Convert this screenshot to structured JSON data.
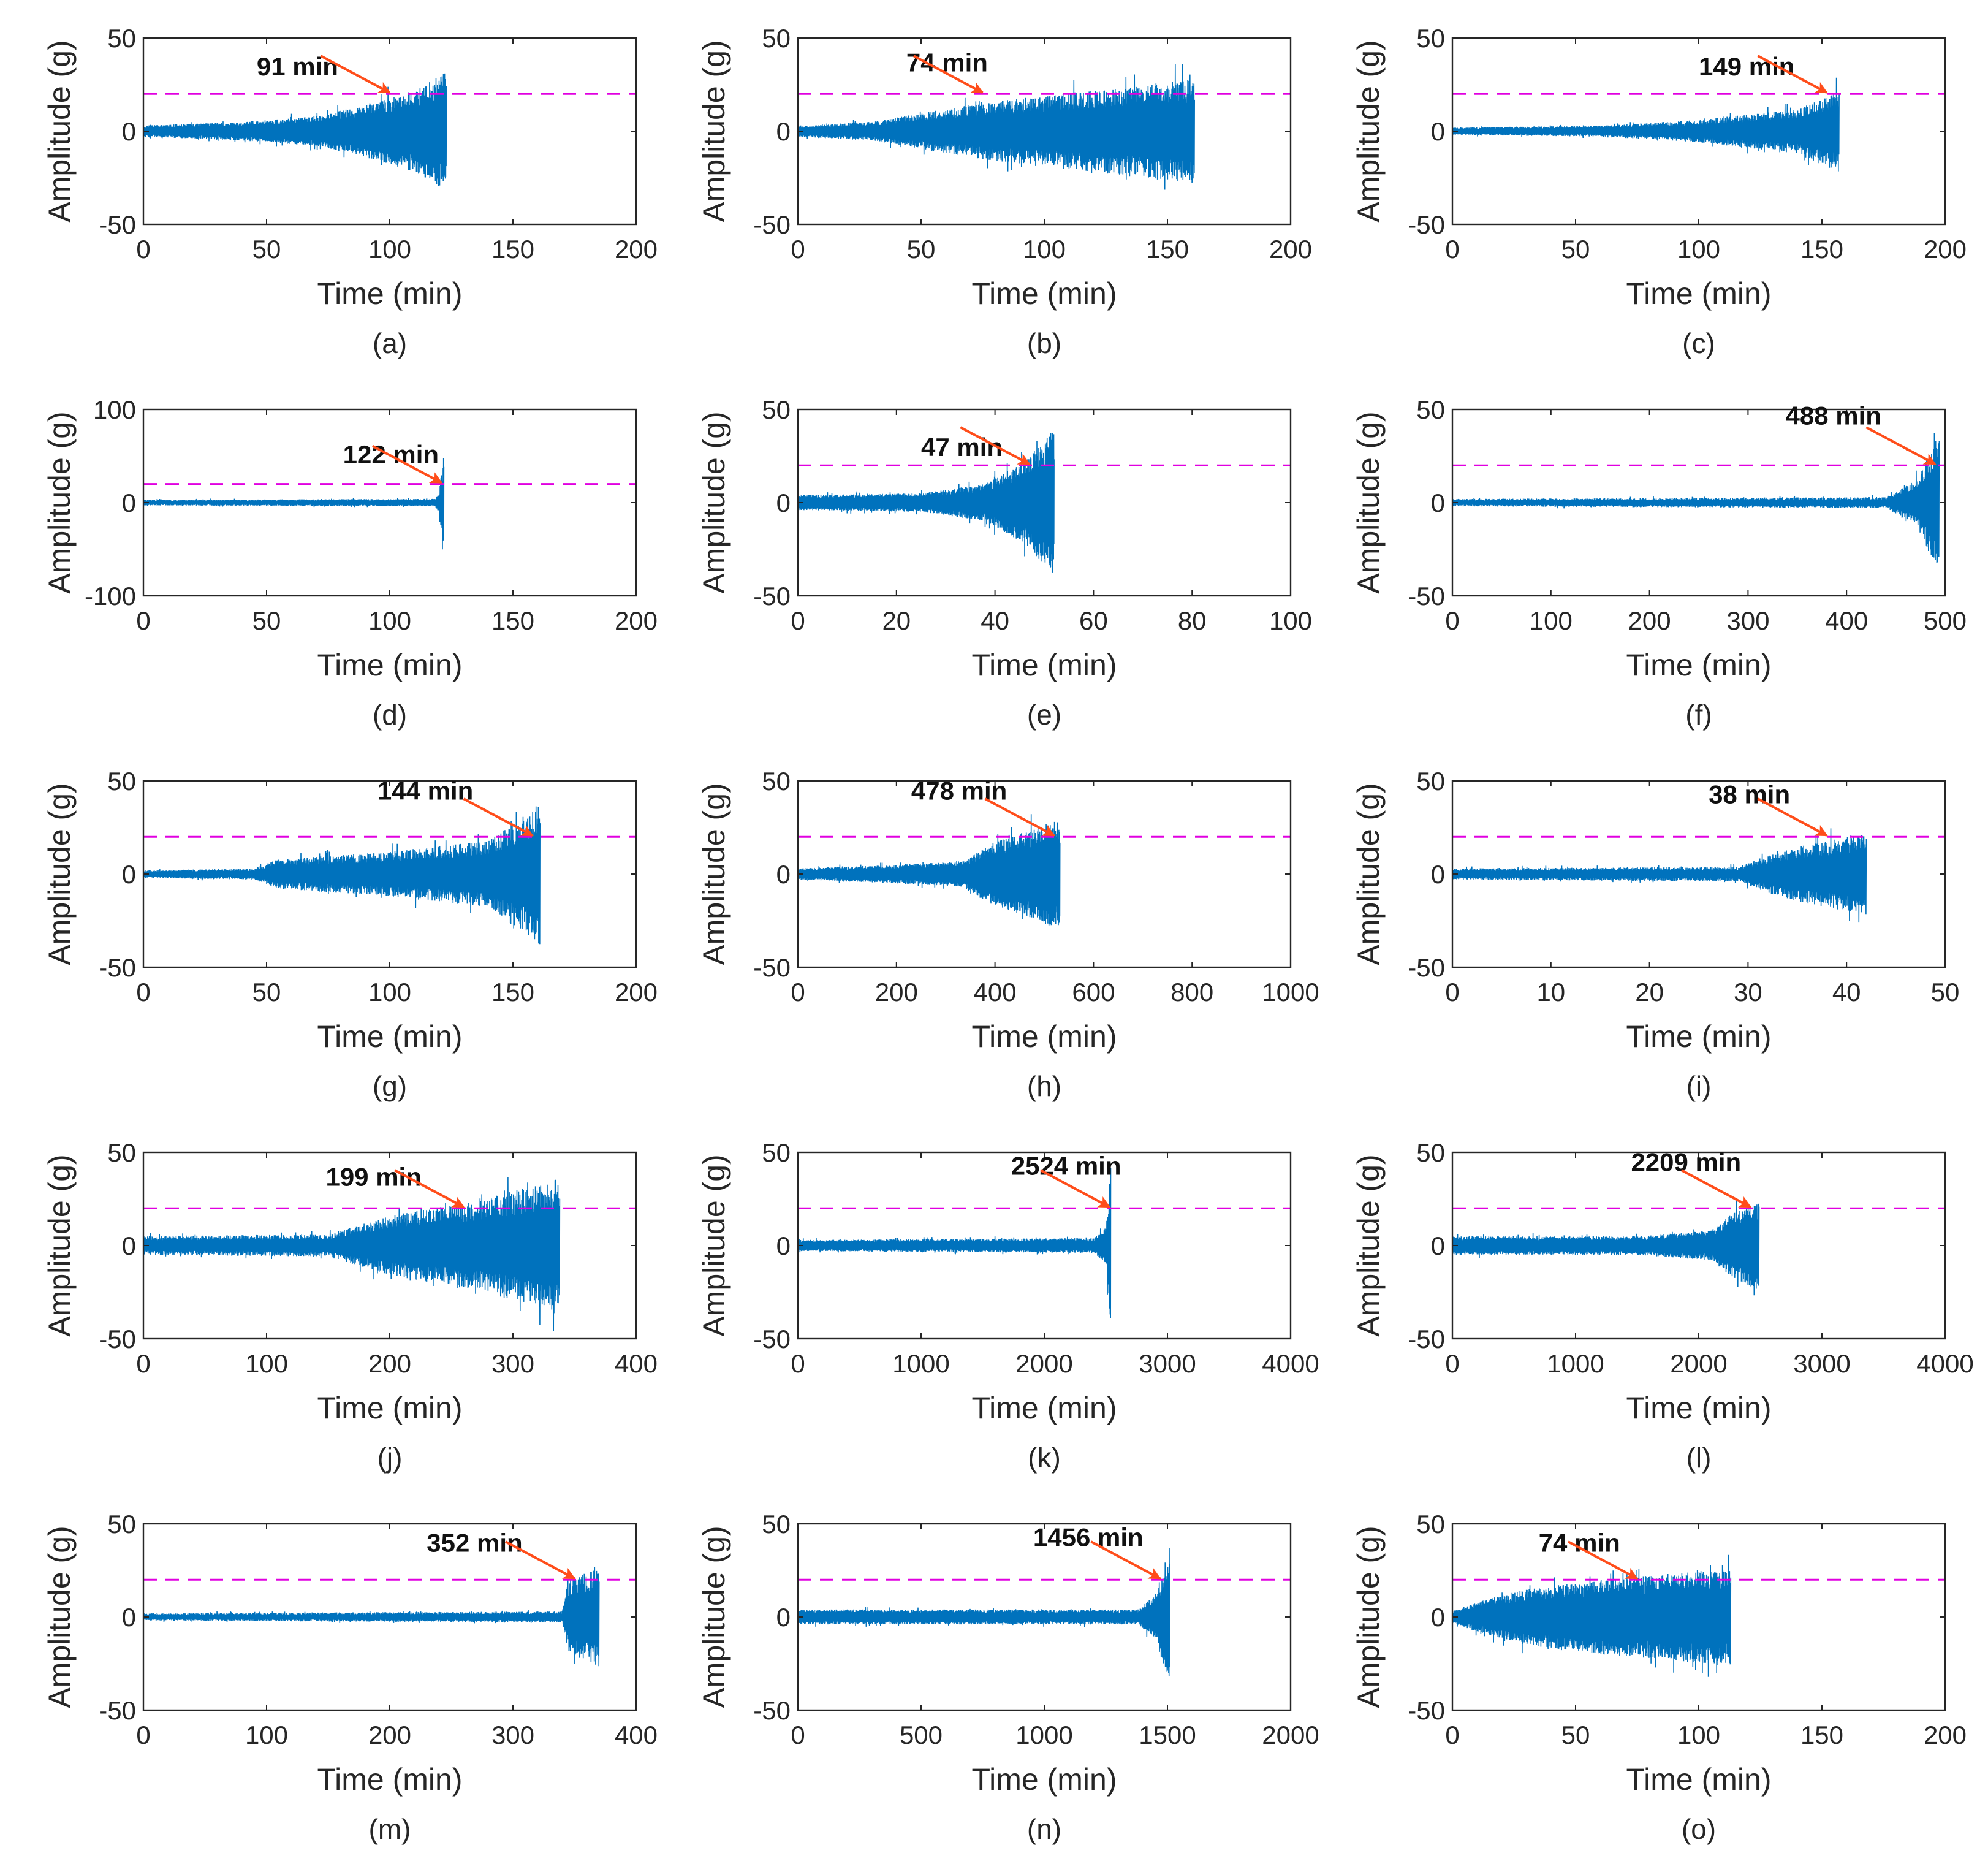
{
  "figure": {
    "threshold_label_note": "dashed line",
    "colors": {
      "signal": "#0072BD",
      "threshold": "#E000E0",
      "arrow": "#FF4D1A",
      "axis": "#262626"
    }
  },
  "chart_data": [
    {
      "type": "line",
      "panel": "(a)",
      "xlim": [
        0,
        200
      ],
      "xticks": [
        0,
        50,
        100,
        150,
        200
      ],
      "ylim": [
        -50,
        50
      ],
      "yticks": [
        -50,
        0,
        50
      ],
      "xlabel": "Time (min)",
      "ylabel": "Amplitude (g)",
      "threshold": 20,
      "end": 123,
      "amp_profile": [
        [
          0,
          3
        ],
        [
          40,
          5
        ],
        [
          70,
          8
        ],
        [
          90,
          14
        ],
        [
          110,
          22
        ],
        [
          123,
          32
        ]
      ],
      "annotation": {
        "label": "91 min",
        "time": 100,
        "text_at": [
          46,
          30
        ]
      }
    },
    {
      "type": "line",
      "panel": "(b)",
      "xlim": [
        0,
        200
      ],
      "xticks": [
        0,
        50,
        100,
        150,
        200
      ],
      "ylim": [
        -50,
        50
      ],
      "yticks": [
        -50,
        0,
        50
      ],
      "xlabel": "Time (min)",
      "ylabel": "Amplitude (g)",
      "threshold": 20,
      "end": 161,
      "amp_profile": [
        [
          0,
          3
        ],
        [
          30,
          5
        ],
        [
          60,
          12
        ],
        [
          80,
          16
        ],
        [
          120,
          22
        ],
        [
          161,
          28
        ]
      ],
      "annotation": {
        "label": "74 min",
        "time": 75,
        "text_at": [
          44,
          32
        ]
      }
    },
    {
      "type": "line",
      "panel": "(c)",
      "xlim": [
        0,
        200
      ],
      "xticks": [
        0,
        50,
        100,
        150,
        200
      ],
      "ylim": [
        -50,
        50
      ],
      "yticks": [
        -50,
        0,
        50
      ],
      "xlabel": "Time (min)",
      "ylabel": "Amplitude (g)",
      "threshold": 20,
      "end": 157,
      "amp_profile": [
        [
          0,
          2
        ],
        [
          60,
          3
        ],
        [
          100,
          6
        ],
        [
          140,
          12
        ],
        [
          157,
          22
        ]
      ],
      "annotation": {
        "label": "149 min",
        "time": 152,
        "text_at": [
          100,
          30
        ]
      }
    },
    {
      "type": "line",
      "panel": "(d)",
      "xlim": [
        0,
        200
      ],
      "xticks": [
        0,
        50,
        100,
        150,
        200
      ],
      "ylim": [
        -100,
        100
      ],
      "yticks": [
        -100,
        0,
        100
      ],
      "xlabel": "Time (min)",
      "ylabel": "Amplitude (g)",
      "threshold": 20,
      "end": 122,
      "amp_profile": [
        [
          0,
          3
        ],
        [
          118,
          4
        ],
        [
          120,
          10
        ],
        [
          122,
          52
        ]
      ],
      "annotation": {
        "label": "122 min",
        "time": 121,
        "text_at": [
          81,
          42
        ]
      }
    },
    {
      "type": "line",
      "panel": "(e)",
      "xlim": [
        0,
        100
      ],
      "xticks": [
        0,
        20,
        40,
        60,
        80,
        100
      ],
      "ylim": [
        -50,
        50
      ],
      "yticks": [
        -50,
        0,
        50
      ],
      "xlabel": "Time (min)",
      "ylabel": "Amplitude (g)",
      "threshold": 20,
      "end": 52,
      "amp_profile": [
        [
          0,
          4
        ],
        [
          25,
          5
        ],
        [
          38,
          10
        ],
        [
          46,
          22
        ],
        [
          52,
          40
        ]
      ],
      "annotation": {
        "label": "47 min",
        "time": 47,
        "text_at": [
          25,
          25
        ]
      }
    },
    {
      "type": "line",
      "panel": "(f)",
      "xlim": [
        0,
        500
      ],
      "xticks": [
        0,
        100,
        200,
        300,
        400,
        500
      ],
      "ylim": [
        -50,
        50
      ],
      "yticks": [
        -50,
        0,
        50
      ],
      "xlabel": "Time (min)",
      "ylabel": "Amplitude (g)",
      "threshold": 20,
      "end": 494,
      "amp_profile": [
        [
          0,
          2
        ],
        [
          440,
          3
        ],
        [
          470,
          12
        ],
        [
          494,
          38
        ]
      ],
      "annotation": {
        "label": "488 min",
        "time": 490,
        "text_at": [
          338,
          42
        ]
      }
    },
    {
      "type": "line",
      "panel": "(g)",
      "xlim": [
        0,
        200
      ],
      "xticks": [
        0,
        50,
        100,
        150,
        200
      ],
      "ylim": [
        -50,
        50
      ],
      "yticks": [
        -50,
        0,
        50
      ],
      "xlabel": "Time (min)",
      "ylabel": "Amplitude (g)",
      "threshold": 20,
      "end": 161,
      "amp_profile": [
        [
          0,
          2
        ],
        [
          45,
          3
        ],
        [
          55,
          8
        ],
        [
          100,
          12
        ],
        [
          140,
          18
        ],
        [
          161,
          38
        ]
      ],
      "annotation": {
        "label": "144 min",
        "time": 158,
        "text_at": [
          95,
          40
        ]
      }
    },
    {
      "type": "line",
      "panel": "(h)",
      "xlim": [
        0,
        1000
      ],
      "xticks": [
        0,
        200,
        400,
        600,
        800,
        1000
      ],
      "ylim": [
        -50,
        50
      ],
      "yticks": [
        -50,
        0,
        50
      ],
      "xlabel": "Time (min)",
      "ylabel": "Amplitude (g)",
      "threshold": 20,
      "end": 532,
      "amp_profile": [
        [
          0,
          3
        ],
        [
          200,
          5
        ],
        [
          340,
          7
        ],
        [
          380,
          15
        ],
        [
          532,
          30
        ]
      ],
      "annotation": {
        "label": "478 min",
        "time": 520,
        "text_at": [
          230,
          40
        ]
      }
    },
    {
      "type": "line",
      "panel": "(i)",
      "xlim": [
        0,
        50
      ],
      "xticks": [
        0,
        10,
        20,
        30,
        40,
        50
      ],
      "ylim": [
        -50,
        50
      ],
      "yticks": [
        -50,
        0,
        50
      ],
      "xlabel": "Time (min)",
      "ylabel": "Amplitude (g)",
      "threshold": 20,
      "end": 42,
      "amp_profile": [
        [
          0,
          3
        ],
        [
          29,
          4
        ],
        [
          32,
          10
        ],
        [
          36,
          16
        ],
        [
          42,
          22
        ]
      ],
      "annotation": {
        "label": "38 min",
        "time": 38,
        "text_at": [
          26,
          38
        ]
      }
    },
    {
      "type": "line",
      "panel": "(j)",
      "xlim": [
        0,
        400
      ],
      "xticks": [
        0,
        100,
        200,
        300,
        400
      ],
      "ylim": [
        -50,
        50
      ],
      "yticks": [
        -50,
        0,
        50
      ],
      "xlabel": "Time (min)",
      "ylabel": "Amplitude (g)",
      "threshold": 20,
      "end": 338,
      "amp_profile": [
        [
          0,
          5
        ],
        [
          150,
          6
        ],
        [
          200,
          16
        ],
        [
          270,
          24
        ],
        [
          338,
          36
        ]
      ],
      "annotation": {
        "label": "199 min",
        "time": 260,
        "text_at": [
          148,
          32
        ]
      }
    },
    {
      "type": "line",
      "panel": "(k)",
      "xlim": [
        0,
        4000
      ],
      "xticks": [
        0,
        1000,
        2000,
        3000,
        4000
      ],
      "ylim": [
        -50,
        50
      ],
      "yticks": [
        -50,
        0,
        50
      ],
      "xlabel": "Time (min)",
      "ylabel": "Amplitude (g)",
      "threshold": 20,
      "end": 2540,
      "amp_profile": [
        [
          0,
          3
        ],
        [
          2400,
          4
        ],
        [
          2500,
          10
        ],
        [
          2540,
          42
        ]
      ],
      "annotation": {
        "label": "2524 min",
        "time": 2530,
        "text_at": [
          1730,
          38
        ]
      }
    },
    {
      "type": "line",
      "panel": "(l)",
      "xlim": [
        0,
        4000
      ],
      "xticks": [
        0,
        1000,
        2000,
        3000,
        4000
      ],
      "ylim": [
        -50,
        50
      ],
      "yticks": [
        -50,
        0,
        50
      ],
      "xlabel": "Time (min)",
      "ylabel": "Amplitude (g)",
      "threshold": 20,
      "end": 2490,
      "amp_profile": [
        [
          0,
          5
        ],
        [
          1500,
          5
        ],
        [
          2100,
          8
        ],
        [
          2250,
          16
        ],
        [
          2490,
          25
        ]
      ],
      "annotation": {
        "label": "2209 min",
        "time": 2420,
        "text_at": [
          1450,
          40
        ]
      }
    },
    {
      "type": "line",
      "panel": "(m)",
      "xlim": [
        0,
        400
      ],
      "xticks": [
        0,
        100,
        200,
        300,
        400
      ],
      "ylim": [
        -50,
        50
      ],
      "yticks": [
        -50,
        0,
        50
      ],
      "xlabel": "Time (min)",
      "ylabel": "Amplitude (g)",
      "threshold": 20,
      "end": 370,
      "amp_profile": [
        [
          0,
          2
        ],
        [
          340,
          3
        ],
        [
          345,
          20
        ],
        [
          370,
          28
        ]
      ],
      "annotation": {
        "label": "352 min",
        "time": 350,
        "text_at": [
          230,
          35
        ]
      }
    },
    {
      "type": "line",
      "panel": "(n)",
      "xlim": [
        0,
        2000
      ],
      "xticks": [
        0,
        500,
        1000,
        1500,
        2000
      ],
      "ylim": [
        -50,
        50
      ],
      "yticks": [
        -50,
        0,
        50
      ],
      "xlabel": "Time (min)",
      "ylabel": "Amplitude (g)",
      "threshold": 20,
      "end": 1510,
      "amp_profile": [
        [
          0,
          4
        ],
        [
          1380,
          4
        ],
        [
          1450,
          12
        ],
        [
          1510,
          38
        ]
      ],
      "annotation": {
        "label": "1456 min",
        "time": 1470,
        "text_at": [
          955,
          38
        ]
      }
    },
    {
      "type": "line",
      "panel": "(o)",
      "xlim": [
        0,
        200
      ],
      "xticks": [
        0,
        50,
        100,
        150,
        200
      ],
      "ylim": [
        -50,
        50
      ],
      "yticks": [
        -50,
        0,
        50
      ],
      "xlabel": "Time (min)",
      "ylabel": "Amplitude (g)",
      "threshold": 20,
      "end": 113,
      "amp_profile": [
        [
          0,
          3
        ],
        [
          10,
          8
        ],
        [
          30,
          15
        ],
        [
          60,
          20
        ],
        [
          113,
          26
        ]
      ],
      "annotation": {
        "label": "74 min",
        "time": 75,
        "text_at": [
          35,
          35
        ]
      }
    }
  ]
}
